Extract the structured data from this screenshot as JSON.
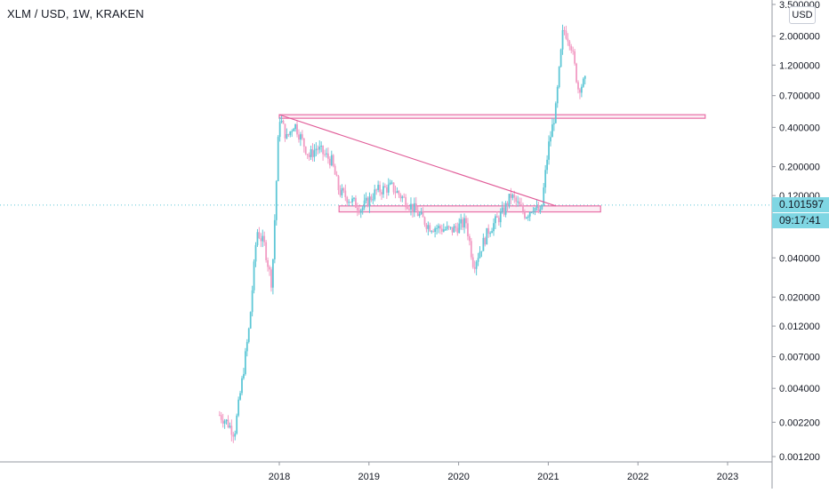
{
  "header": {
    "title": "XLM / USD, 1W, KRAKEN",
    "currency_button": "USD"
  },
  "price_tags": {
    "last_price": "0.101597",
    "countdown": "09:17:41"
  },
  "colors": {
    "up": "#5ec7d6",
    "down": "#f29cc4",
    "zone": "#e86ea6",
    "trendline": "#e05a97",
    "price_line": "#5ec7d6"
  },
  "chart_data": {
    "type": "candlestick",
    "title": "XLM / USD, 1W, KRAKEN",
    "y_scale": "log",
    "y_ticks": [
      "3.500000",
      "2.000000",
      "1.200000",
      "0.700000",
      "0.400000",
      "0.200000",
      "0.120000",
      "0.101597",
      "0.040000",
      "0.020000",
      "0.012000",
      "0.007000",
      "0.004000",
      "0.002200",
      "0.001200"
    ],
    "x_ticks": [
      "2018",
      "2019",
      "2020",
      "2021",
      "2022",
      "2023"
    ],
    "last_price": 0.101597,
    "resistance_zone": {
      "from": "2018-01",
      "to": "2022-10",
      "low": 0.47,
      "high": 0.5
    },
    "support_zone": {
      "from": "2018-09",
      "to": "2021-08",
      "low": 0.09,
      "high": 0.1
    },
    "trendline": {
      "start": {
        "date": "2018-01",
        "price": 0.5
      },
      "end": {
        "date": "2021-02",
        "price": 0.1
      }
    },
    "anchors": [
      {
        "date": "2017-05",
        "price": 0.0025
      },
      {
        "date": "2017-06",
        "price": 0.0022
      },
      {
        "date": "2017-07",
        "price": 0.0018
      },
      {
        "date": "2017-08",
        "price": 0.0045
      },
      {
        "date": "2017-09",
        "price": 0.012
      },
      {
        "date": "2017-10",
        "price": 0.065
      },
      {
        "date": "2017-11",
        "price": 0.05
      },
      {
        "date": "2017-12",
        "price": 0.025
      },
      {
        "date": "2018-01",
        "price": 0.49
      },
      {
        "date": "2018-02",
        "price": 0.33
      },
      {
        "date": "2018-03",
        "price": 0.43
      },
      {
        "date": "2018-05",
        "price": 0.24
      },
      {
        "date": "2018-06",
        "price": 0.28
      },
      {
        "date": "2018-08",
        "price": 0.22
      },
      {
        "date": "2018-09",
        "price": 0.13
      },
      {
        "date": "2018-12",
        "price": 0.095
      },
      {
        "date": "2019-02",
        "price": 0.13
      },
      {
        "date": "2019-04",
        "price": 0.14
      },
      {
        "date": "2019-07",
        "price": 0.095
      },
      {
        "date": "2019-09",
        "price": 0.07
      },
      {
        "date": "2019-12",
        "price": 0.065
      },
      {
        "date": "2020-02",
        "price": 0.075
      },
      {
        "date": "2020-03",
        "price": 0.035
      },
      {
        "date": "2020-05",
        "price": 0.065
      },
      {
        "date": "2020-07",
        "price": 0.09
      },
      {
        "date": "2020-08",
        "price": 0.12
      },
      {
        "date": "2020-10",
        "price": 0.085
      },
      {
        "date": "2020-11",
        "price": 0.1
      },
      {
        "date": "2020-12",
        "price": 0.085
      },
      {
        "date": "2021-01",
        "price": 0.28
      },
      {
        "date": "2021-02",
        "price": 0.55
      },
      {
        "date": "2021-03",
        "price": 2.3
      },
      {
        "date": "2021-04",
        "price": 1.8
      },
      {
        "date": "2021-05",
        "price": 0.8
      },
      {
        "date": "2021-06",
        "price": 0.9
      }
    ]
  }
}
